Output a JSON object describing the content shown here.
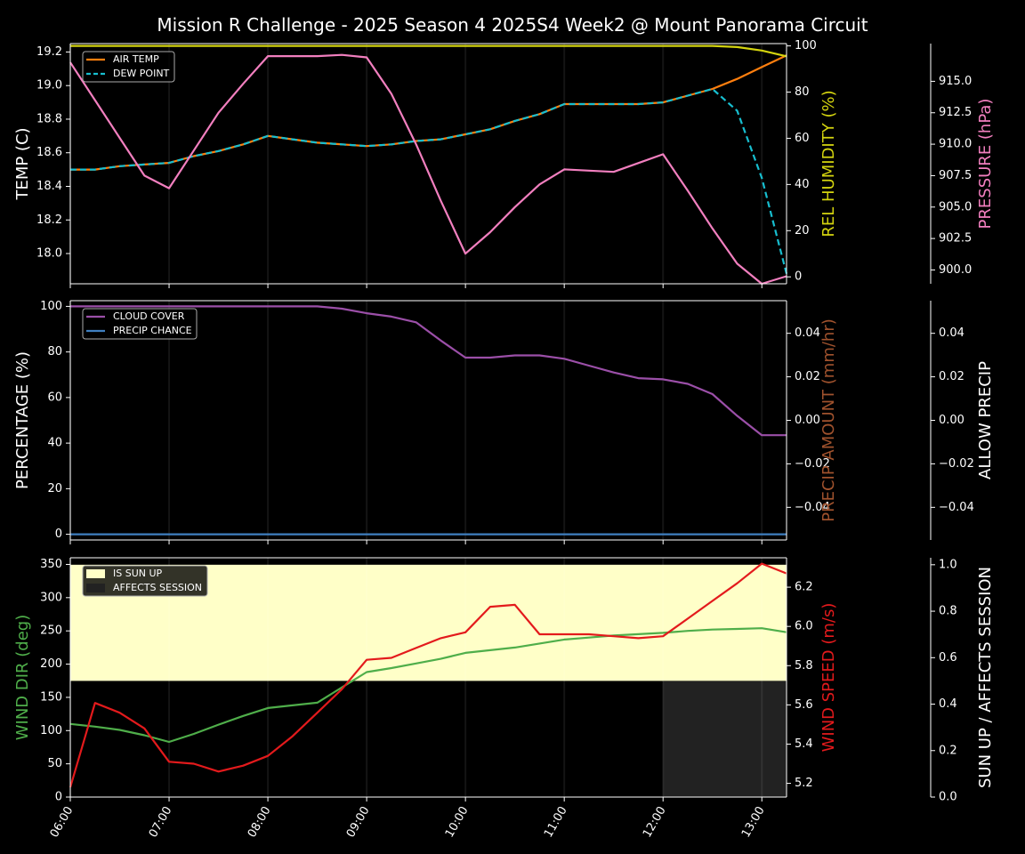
{
  "title": "Mission R Challenge - 2025 Season 4 2025S4 Week2 @ Mount Panorama Circuit",
  "colors": {
    "background": "#000000",
    "air_temp": "#ff7f0e",
    "dew_point": "#17becf",
    "humidity": "#d4d40f",
    "pressure": "#f27fbf",
    "cloud": "#9b4fa8",
    "precip_chance": "#3f7fc0",
    "precip_amount": "#a0522d",
    "wind_dir": "#4fae4a",
    "wind_speed": "#e31a1c",
    "sun_up": "#ffffc8",
    "affects_session": "#222222"
  },
  "x_ticks": [
    "06:00",
    "07:00",
    "08:00",
    "09:00",
    "10:00",
    "11:00",
    "12:00",
    "13:00"
  ],
  "chart_data": [
    {
      "type": "line",
      "panel": "temperature",
      "x": [
        6.0,
        6.25,
        6.5,
        6.75,
        7.0,
        7.25,
        7.5,
        7.75,
        8.0,
        8.25,
        8.5,
        8.75,
        9.0,
        9.25,
        9.5,
        9.75,
        10.0,
        10.25,
        10.5,
        10.75,
        11.0,
        11.25,
        11.5,
        11.75,
        12.0,
        12.25,
        12.5,
        12.75,
        13.0,
        13.25
      ],
      "ylabel": "TEMP (C)",
      "ylim": [
        17.82,
        19.25
      ],
      "yticks": [
        "18.0",
        "18.2",
        "18.4",
        "18.6",
        "18.8",
        "19.0",
        "19.2"
      ],
      "y2label": "REL HUMIDITY (%)",
      "y2lim": [
        -3,
        101
      ],
      "y2ticks": [
        "0",
        "20",
        "40",
        "60",
        "80",
        "100"
      ],
      "y3label": "PRESSURE (hPa)",
      "y3lim": [
        898.9,
        918.0
      ],
      "y3ticks": [
        "900.0",
        "902.5",
        "905.0",
        "907.5",
        "910.0",
        "912.5",
        "915.0"
      ],
      "series": [
        {
          "name": "AIR TEMP",
          "axis": "y",
          "values": [
            18.5,
            18.5,
            18.52,
            18.53,
            18.54,
            18.58,
            18.61,
            18.65,
            18.7,
            18.68,
            18.66,
            18.65,
            18.64,
            18.65,
            18.67,
            18.68,
            18.71,
            18.74,
            18.79,
            18.83,
            18.89,
            18.89,
            18.89,
            18.89,
            18.9,
            18.94,
            18.98,
            19.04,
            19.11,
            19.18
          ]
        },
        {
          "name": "DEW POINT",
          "axis": "y",
          "values": [
            18.5,
            18.5,
            18.52,
            18.53,
            18.54,
            18.58,
            18.61,
            18.65,
            18.7,
            18.68,
            18.66,
            18.65,
            18.64,
            18.65,
            18.67,
            18.68,
            18.71,
            18.74,
            18.79,
            18.83,
            18.89,
            18.89,
            18.89,
            18.89,
            18.9,
            18.94,
            18.98,
            18.85,
            18.45,
            17.88
          ]
        },
        {
          "name": "REL HUMIDITY",
          "axis": "y2",
          "values": [
            100,
            100,
            100,
            100,
            100,
            100,
            100,
            100,
            100,
            100,
            100,
            100,
            100,
            100,
            100,
            100,
            100,
            100,
            100,
            100,
            100,
            100,
            100,
            100,
            100,
            100,
            100,
            99.5,
            98,
            95.5
          ]
        },
        {
          "name": "PRESSURE",
          "axis": "y3",
          "values": [
            916.5,
            913.5,
            910.5,
            907.5,
            906.5,
            909.5,
            912.5,
            914.8,
            917.0,
            917.0,
            917.0,
            917.1,
            916.9,
            914.0,
            910.0,
            905.5,
            901.3,
            903.0,
            905.0,
            906.8,
            908.0,
            907.9,
            907.8,
            908.5,
            909.2,
            906.3,
            903.3,
            900.5,
            898.9,
            899.5
          ]
        }
      ]
    },
    {
      "type": "line",
      "panel": "precipitation",
      "x": [
        6.0,
        6.25,
        6.5,
        6.75,
        7.0,
        7.25,
        7.5,
        7.75,
        8.0,
        8.25,
        8.5,
        8.75,
        9.0,
        9.25,
        9.5,
        9.75,
        10.0,
        10.25,
        10.5,
        10.75,
        11.0,
        11.25,
        11.5,
        11.75,
        12.0,
        12.25,
        12.5,
        12.75,
        13.0,
        13.25
      ],
      "ylabel": "PERCENTAGE (%)",
      "ylim": [
        -2.5,
        102.5
      ],
      "yticks": [
        "0",
        "20",
        "40",
        "60",
        "80",
        "100"
      ],
      "y2label": "PRECIP AMOUNT (mm/hr)",
      "y2lim": [
        -0.055,
        0.055
      ],
      "y2ticks": [
        "−0.04",
        "−0.02",
        "0.00",
        "0.02",
        "0.04"
      ],
      "y3label": "ALLOW PRECIP",
      "y3lim": [
        -0.055,
        0.055
      ],
      "y3ticks": [
        "−0.04",
        "−0.02",
        "0.00",
        "0.02",
        "0.04"
      ],
      "series": [
        {
          "name": "CLOUD COVER",
          "axis": "y",
          "values": [
            100,
            100,
            100,
            100,
            100,
            100,
            100,
            100,
            100,
            100,
            100,
            99,
            97,
            95.5,
            93,
            85,
            77.5,
            77.5,
            78.5,
            78.5,
            77,
            74,
            71,
            68.5,
            68,
            66,
            61.5,
            52,
            43.5,
            43.5
          ]
        },
        {
          "name": "PRECIP CHANCE",
          "axis": "y",
          "values": [
            0,
            0,
            0,
            0,
            0,
            0,
            0,
            0,
            0,
            0,
            0,
            0,
            0,
            0,
            0,
            0,
            0,
            0,
            0,
            0,
            0,
            0,
            0,
            0,
            0,
            0,
            0,
            0,
            0,
            0
          ]
        }
      ]
    },
    {
      "type": "line",
      "panel": "wind",
      "x": [
        6.0,
        6.25,
        6.5,
        6.75,
        7.0,
        7.25,
        7.5,
        7.75,
        8.0,
        8.25,
        8.5,
        8.75,
        9.0,
        9.25,
        9.5,
        9.75,
        10.0,
        10.25,
        10.5,
        10.75,
        11.0,
        11.25,
        11.5,
        11.75,
        12.0,
        12.25,
        12.5,
        12.75,
        13.0,
        13.25
      ],
      "ylabel": "WIND DIR (deg)",
      "ylim": [
        0,
        360
      ],
      "yticks": [
        "0",
        "50",
        "100",
        "150",
        "200",
        "250",
        "300",
        "350"
      ],
      "y2label": "WIND SPEED (m/s)",
      "y2lim": [
        5.13,
        6.35
      ],
      "y2ticks": [
        "5.2",
        "5.4",
        "5.6",
        "5.8",
        "6.0",
        "6.2"
      ],
      "y3label": "SUN UP / AFFECTS SESSION",
      "y3lim": [
        0,
        1.03
      ],
      "y3ticks": [
        "0.0",
        "0.2",
        "0.4",
        "0.6",
        "0.8",
        "1.0"
      ],
      "bands": [
        {
          "name": "IS SUN UP",
          "x_from": 6.0,
          "x_to": 13.25,
          "y_from": 0.5,
          "y_to": 1.0
        },
        {
          "name": "AFFECTS SESSION",
          "x_from": 12.0,
          "x_to": 13.25,
          "y_from": 0.0,
          "y_to": 0.5
        }
      ],
      "series": [
        {
          "name": "WIND DIR",
          "axis": "y",
          "values": [
            110,
            106,
            101,
            93,
            83,
            95,
            109,
            122,
            134,
            138,
            142,
            165,
            188,
            194,
            201,
            208,
            217,
            221,
            225,
            231,
            237,
            240,
            243,
            245,
            247,
            250,
            252,
            253,
            254,
            248
          ]
        },
        {
          "name": "WIND SPEED",
          "axis": "y2",
          "values": [
            5.18,
            5.61,
            5.56,
            5.48,
            5.31,
            5.3,
            5.26,
            5.29,
            5.34,
            5.44,
            5.56,
            5.68,
            5.83,
            5.84,
            5.89,
            5.94,
            5.97,
            6.1,
            6.11,
            5.96,
            5.96,
            5.96,
            5.95,
            5.94,
            5.95,
            6.04,
            6.13,
            6.22,
            6.32,
            6.27
          ]
        }
      ]
    }
  ]
}
